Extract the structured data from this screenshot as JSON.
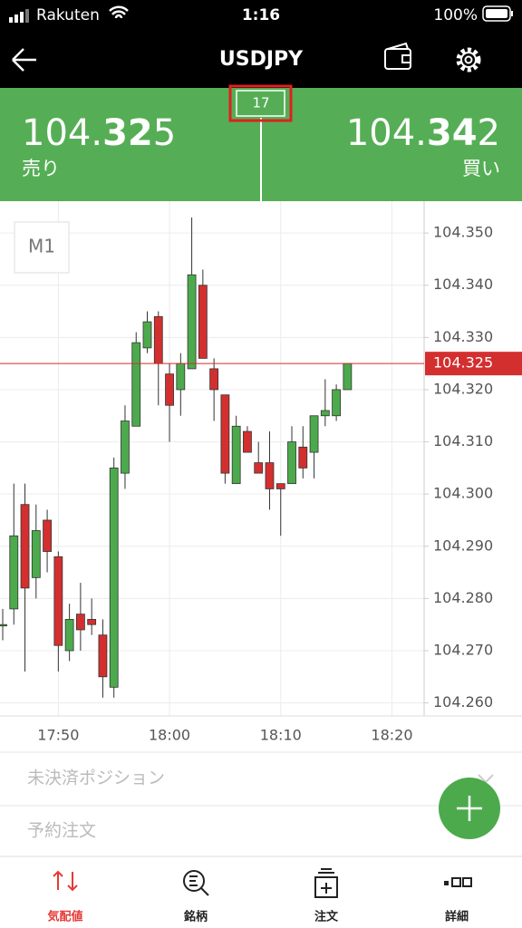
{
  "status_bar": {
    "carrier": "Rakuten",
    "time": "1:16",
    "battery": "100%"
  },
  "header": {
    "title": "USDJPY"
  },
  "quote": {
    "bid": {
      "integer": "104.",
      "big": "32",
      "last": "5",
      "label": "売り"
    },
    "spread": "17",
    "ask": {
      "integer": "104.",
      "big": "34",
      "last": "2",
      "label": "買い"
    }
  },
  "chart_data": {
    "type": "candlestick",
    "timeframe": "M1",
    "categories": [
      null,
      null,
      null,
      null,
      null,
      "17:50",
      null,
      null,
      null,
      null,
      null,
      null,
      null,
      null,
      null,
      "18:00",
      null,
      null,
      null,
      null,
      null,
      null,
      null,
      null,
      null,
      "18:10",
      null,
      null,
      null,
      null,
      null,
      null,
      null,
      null,
      null,
      "18:20"
    ],
    "open": [
      104.275,
      104.278,
      104.298,
      104.284,
      104.295,
      104.288,
      104.27,
      104.277,
      104.276,
      104.273,
      104.263,
      104.304,
      104.313,
      104.328,
      104.334,
      104.323,
      104.32,
      104.324,
      104.34,
      104.324,
      104.319,
      104.302,
      104.312,
      104.306,
      104.306,
      104.302,
      104.302,
      104.309,
      104.308,
      104.315,
      104.315,
      104.32,
      null,
      null,
      null,
      null
    ],
    "high": [
      104.278,
      104.302,
      104.302,
      104.298,
      104.297,
      104.289,
      104.279,
      104.283,
      104.28,
      104.276,
      104.307,
      104.317,
      104.331,
      104.335,
      104.335,
      104.325,
      104.327,
      104.353,
      104.343,
      104.326,
      104.319,
      104.315,
      104.313,
      104.31,
      104.312,
      104.302,
      104.313,
      104.313,
      104.315,
      104.322,
      104.321,
      104.325,
      null,
      null,
      null,
      null
    ],
    "low": [
      104.272,
      104.275,
      104.266,
      104.28,
      104.285,
      104.266,
      104.268,
      104.27,
      104.273,
      104.261,
      104.261,
      104.301,
      104.313,
      104.327,
      104.317,
      104.31,
      104.315,
      104.324,
      104.326,
      104.314,
      104.302,
      104.302,
      104.308,
      104.304,
      104.297,
      104.292,
      104.302,
      104.303,
      104.303,
      104.313,
      104.314,
      104.32,
      null,
      null,
      null,
      null
    ],
    "close": [
      104.275,
      104.292,
      104.282,
      104.293,
      104.289,
      104.271,
      104.276,
      104.274,
      104.275,
      104.265,
      104.305,
      104.314,
      104.329,
      104.333,
      104.325,
      104.317,
      104.325,
      104.342,
      104.326,
      104.32,
      104.304,
      104.313,
      104.308,
      104.304,
      104.301,
      104.301,
      104.31,
      104.305,
      104.315,
      104.316,
      104.32,
      104.325,
      null,
      null,
      null,
      null
    ],
    "up_color": "#4caa4c",
    "down_color": "#d32f2f",
    "ylim": [
      104.2575,
      104.3561
    ],
    "yticks": [
      {
        "value": 104.26,
        "label": "104.260"
      },
      {
        "value": 104.27,
        "label": "104.270"
      },
      {
        "value": 104.28,
        "label": "104.280"
      },
      {
        "value": 104.29,
        "label": "104.290"
      },
      {
        "value": 104.3,
        "label": "104.300"
      },
      {
        "value": 104.31,
        "label": "104.310"
      },
      {
        "value": 104.32,
        "label": "104.320"
      },
      {
        "value": 104.33,
        "label": "104.330"
      },
      {
        "value": 104.34,
        "label": "104.340"
      },
      {
        "value": 104.35,
        "label": "104.350"
      }
    ],
    "current_price": 104.325,
    "current_price_color": "#d32f2f",
    "grid": true
  },
  "panels": [
    "未決済ポジション",
    "予約注文"
  ],
  "tabs": [
    {
      "label": "気配値",
      "active": true
    },
    {
      "label": "銘柄",
      "active": false
    },
    {
      "label": "注文",
      "active": false
    },
    {
      "label": "詳細",
      "active": false
    }
  ]
}
